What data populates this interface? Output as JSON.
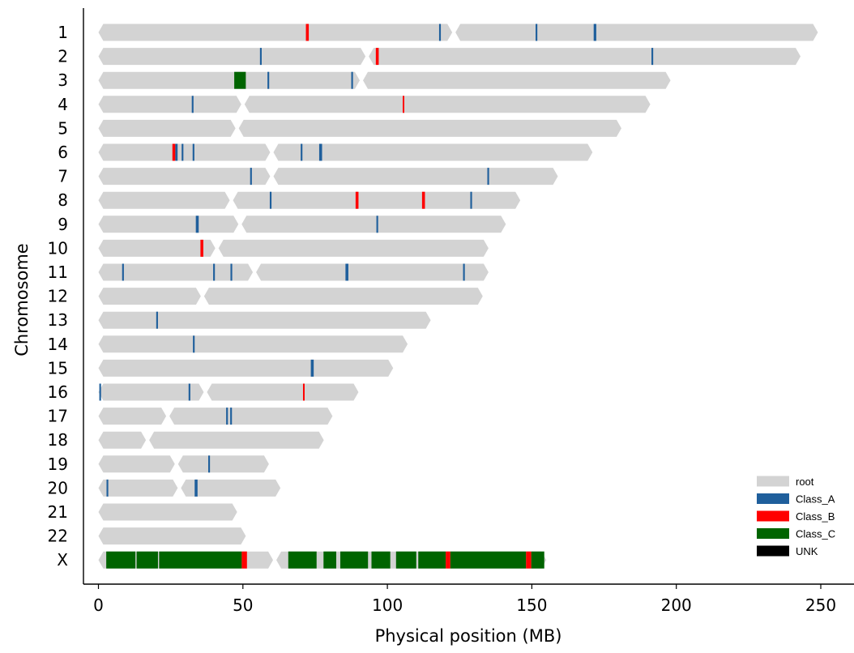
{
  "chart_data": {
    "type": "chromosome ideogram",
    "xlabel": "Physical position (MB)",
    "ylabel": "Chromosome",
    "xlim": [
      -5,
      262
    ],
    "xticks": [
      0,
      50,
      100,
      150,
      200,
      250
    ],
    "chromosomes": [
      {
        "label": "1",
        "length": 249,
        "centromere": 123
      },
      {
        "label": "2",
        "length": 243,
        "centromere": 93
      },
      {
        "label": "3",
        "length": 198,
        "centromere": 91
      },
      {
        "label": "4",
        "length": 191,
        "centromere": 50
      },
      {
        "label": "5",
        "length": 181,
        "centromere": 48
      },
      {
        "label": "6",
        "length": 171,
        "centromere": 60
      },
      {
        "label": "7",
        "length": 159,
        "centromere": 60
      },
      {
        "label": "8",
        "length": 146,
        "centromere": 46
      },
      {
        "label": "9",
        "length": 141,
        "centromere": 49
      },
      {
        "label": "10",
        "length": 135,
        "centromere": 41
      },
      {
        "label": "11",
        "length": 135,
        "centromere": 54
      },
      {
        "label": "12",
        "length": 133,
        "centromere": 36
      },
      {
        "label": "13",
        "length": 115,
        "centromere": null
      },
      {
        "label": "14",
        "length": 107,
        "centromere": null
      },
      {
        "label": "15",
        "length": 102,
        "centromere": null
      },
      {
        "label": "16",
        "length": 90,
        "centromere": 37
      },
      {
        "label": "17",
        "length": 81,
        "centromere": 24
      },
      {
        "label": "18",
        "length": 78,
        "centromere": 17
      },
      {
        "label": "19",
        "length": 59,
        "centromere": 27
      },
      {
        "label": "20",
        "length": 63,
        "centromere": 28
      },
      {
        "label": "21",
        "length": 48,
        "centromere": null
      },
      {
        "label": "22",
        "length": 51,
        "centromere": null
      },
      {
        "label": "X",
        "length": 155,
        "centromere": 61
      }
    ],
    "legend": {
      "position": "bottom-right",
      "entries": [
        {
          "name": "root",
          "color": "#d3d3d3"
        },
        {
          "name": "Class_A",
          "color": "#1f5f9c"
        },
        {
          "name": "Class_B",
          "color": "#ff0000"
        },
        {
          "name": "Class_C",
          "color": "#006400"
        },
        {
          "name": "UNK",
          "color": "#000000"
        }
      ]
    },
    "segments": [
      {
        "chrom": "1",
        "start": 71.8,
        "end": 72.8,
        "class": "Class_B"
      },
      {
        "chrom": "1",
        "start": 117.9,
        "end": 118.5,
        "class": "Class_A"
      },
      {
        "chrom": "1",
        "start": 151.3,
        "end": 151.9,
        "class": "Class_A"
      },
      {
        "chrom": "1",
        "start": 171.4,
        "end": 172.3,
        "class": "Class_A"
      },
      {
        "chrom": "2",
        "start": 55.9,
        "end": 56.5,
        "class": "Class_A"
      },
      {
        "chrom": "2",
        "start": 96.0,
        "end": 97.0,
        "class": "Class_B"
      },
      {
        "chrom": "2",
        "start": 191.4,
        "end": 192.0,
        "class": "Class_A"
      },
      {
        "chrom": "3",
        "start": 47.0,
        "end": 51.0,
        "class": "Class_C"
      },
      {
        "chrom": "3",
        "start": 58.5,
        "end": 59.1,
        "class": "Class_A"
      },
      {
        "chrom": "3",
        "start": 87.5,
        "end": 88.1,
        "class": "Class_A"
      },
      {
        "chrom": "4",
        "start": 32.3,
        "end": 32.9,
        "class": "Class_A"
      },
      {
        "chrom": "4",
        "start": 105.3,
        "end": 105.8,
        "class": "Class_B"
      },
      {
        "chrom": "5",
        "start": 0,
        "end": 0,
        "class": "root"
      },
      {
        "chrom": "6",
        "start": 25.6,
        "end": 26.6,
        "class": "Class_B"
      },
      {
        "chrom": "6",
        "start": 26.6,
        "end": 27.4,
        "class": "Class_A"
      },
      {
        "chrom": "6",
        "start": 28.8,
        "end": 29.4,
        "class": "Class_A"
      },
      {
        "chrom": "6",
        "start": 32.6,
        "end": 33.2,
        "class": "Class_A"
      },
      {
        "chrom": "6",
        "start": 70.0,
        "end": 70.6,
        "class": "Class_A"
      },
      {
        "chrom": "6",
        "start": 76.4,
        "end": 77.4,
        "class": "Class_A"
      },
      {
        "chrom": "7",
        "start": 52.5,
        "end": 53.1,
        "class": "Class_A"
      },
      {
        "chrom": "7",
        "start": 134.6,
        "end": 135.2,
        "class": "Class_A"
      },
      {
        "chrom": "8",
        "start": 59.3,
        "end": 59.9,
        "class": "Class_A"
      },
      {
        "chrom": "8",
        "start": 89.0,
        "end": 90.0,
        "class": "Class_B"
      },
      {
        "chrom": "8",
        "start": 112.0,
        "end": 113.0,
        "class": "Class_B"
      },
      {
        "chrom": "8",
        "start": 128.7,
        "end": 129.3,
        "class": "Class_A"
      },
      {
        "chrom": "9",
        "start": 33.7,
        "end": 34.7,
        "class": "Class_A"
      },
      {
        "chrom": "9",
        "start": 96.2,
        "end": 96.8,
        "class": "Class_A"
      },
      {
        "chrom": "10",
        "start": 35.3,
        "end": 36.3,
        "class": "Class_B"
      },
      {
        "chrom": "11",
        "start": 8.2,
        "end": 8.8,
        "class": "Class_A"
      },
      {
        "chrom": "11",
        "start": 39.7,
        "end": 40.3,
        "class": "Class_A"
      },
      {
        "chrom": "11",
        "start": 45.7,
        "end": 46.3,
        "class": "Class_A"
      },
      {
        "chrom": "11",
        "start": 85.5,
        "end": 86.5,
        "class": "Class_A"
      },
      {
        "chrom": "11",
        "start": 126.2,
        "end": 126.8,
        "class": "Class_A"
      },
      {
        "chrom": "13",
        "start": 20.0,
        "end": 20.6,
        "class": "Class_A"
      },
      {
        "chrom": "14",
        "start": 32.7,
        "end": 33.3,
        "class": "Class_A"
      },
      {
        "chrom": "15",
        "start": 73.5,
        "end": 74.5,
        "class": "Class_A"
      },
      {
        "chrom": "16",
        "start": 0.3,
        "end": 0.9,
        "class": "Class_A"
      },
      {
        "chrom": "16",
        "start": 31.2,
        "end": 31.8,
        "class": "Class_A"
      },
      {
        "chrom": "16",
        "start": 70.8,
        "end": 71.3,
        "class": "Class_B"
      },
      {
        "chrom": "17",
        "start": 44.2,
        "end": 44.8,
        "class": "Class_A"
      },
      {
        "chrom": "17",
        "start": 45.6,
        "end": 46.2,
        "class": "Class_A"
      },
      {
        "chrom": "19",
        "start": 38.0,
        "end": 38.6,
        "class": "Class_A"
      },
      {
        "chrom": "20",
        "start": 2.8,
        "end": 3.4,
        "class": "Class_A"
      },
      {
        "chrom": "20",
        "start": 33.3,
        "end": 34.3,
        "class": "Class_A"
      },
      {
        "chrom": "X",
        "start": 2.7,
        "end": 12.8,
        "class": "Class_C"
      },
      {
        "chrom": "X",
        "start": 13.2,
        "end": 20.6,
        "class": "Class_C"
      },
      {
        "chrom": "X",
        "start": 21.0,
        "end": 49.6,
        "class": "Class_C"
      },
      {
        "chrom": "X",
        "start": 49.6,
        "end": 51.4,
        "class": "Class_B"
      },
      {
        "chrom": "X",
        "start": 65.7,
        "end": 75.5,
        "class": "Class_C"
      },
      {
        "chrom": "X",
        "start": 77.9,
        "end": 82.3,
        "class": "Class_C"
      },
      {
        "chrom": "X",
        "start": 83.7,
        "end": 93.3,
        "class": "Class_C"
      },
      {
        "chrom": "X",
        "start": 94.5,
        "end": 101.0,
        "class": "Class_C"
      },
      {
        "chrom": "X",
        "start": 103.0,
        "end": 110.0,
        "class": "Class_C"
      },
      {
        "chrom": "X",
        "start": 110.7,
        "end": 120.2,
        "class": "Class_C"
      },
      {
        "chrom": "X",
        "start": 120.2,
        "end": 121.8,
        "class": "Class_B"
      },
      {
        "chrom": "X",
        "start": 121.8,
        "end": 148.0,
        "class": "Class_C"
      },
      {
        "chrom": "X",
        "start": 148.0,
        "end": 149.8,
        "class": "Class_B"
      },
      {
        "chrom": "X",
        "start": 149.8,
        "end": 154.3,
        "class": "Class_C"
      }
    ]
  }
}
